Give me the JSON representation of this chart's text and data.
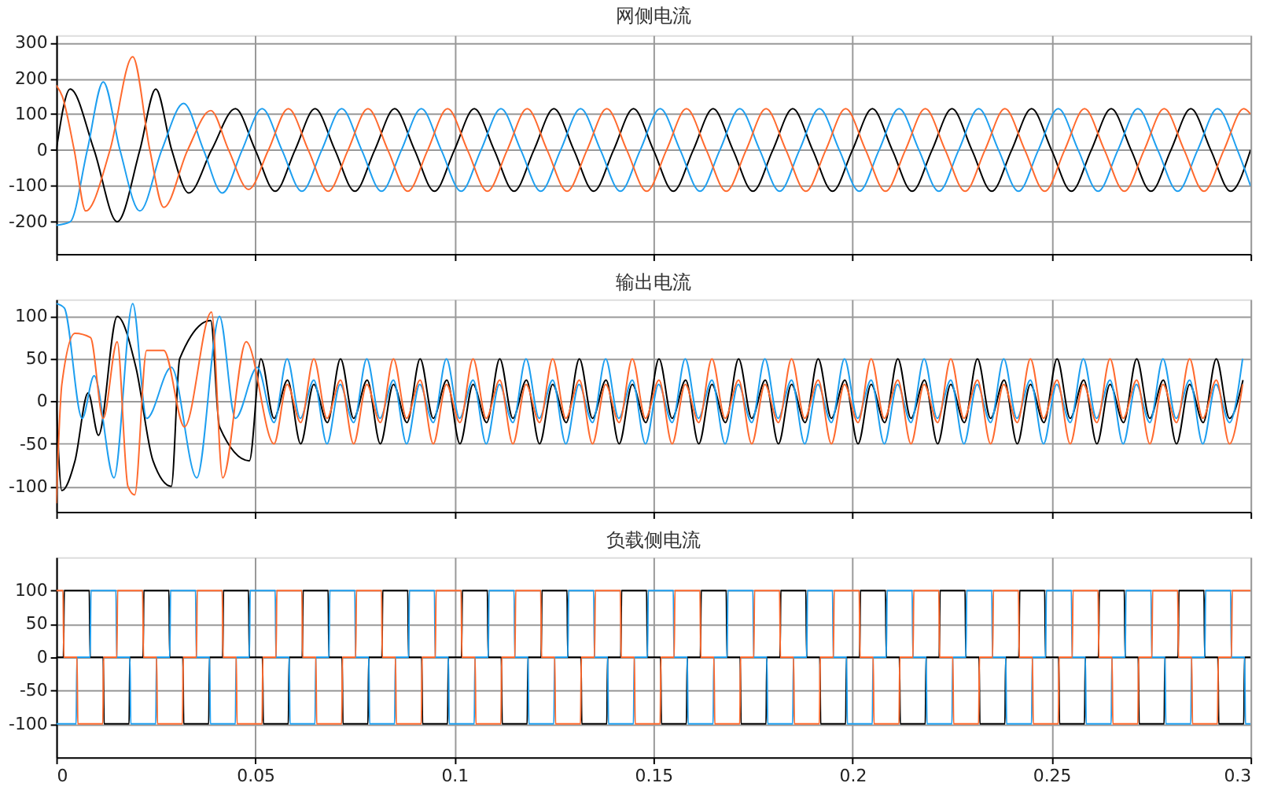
{
  "chart_data": [
    {
      "type": "line",
      "title": "网侧电流",
      "xlim": [
        0,
        0.3
      ],
      "xticks": [
        0,
        0.05,
        0.1,
        0.15,
        0.2,
        0.25,
        0.3
      ],
      "ylim": [
        -290,
        320
      ],
      "yticks": [
        -200,
        -100,
        0,
        100,
        200,
        300
      ],
      "grid": true,
      "tick_labels": "y",
      "series": [
        {
          "color": "#000000",
          "x": [
            0,
            0.0035,
            0.0095,
            0.0153,
            0.021,
            0.025,
            0.029,
            0.0333,
            0.039,
            0.045,
            0.05,
            0.055,
            0.06,
            0.065,
            0.07,
            0.075,
            0.08,
            0.085,
            0.09,
            0.095,
            0.1,
            0.105,
            0.11,
            0.115,
            0.12,
            0.125,
            0.13,
            0.135,
            0.14,
            0.145,
            0.15,
            0.155,
            0.16,
            0.165,
            0.17,
            0.175,
            0.18,
            0.185,
            0.19,
            0.195,
            0.2,
            0.205,
            0.21,
            0.215,
            0.22,
            0.225,
            0.23,
            0.235,
            0.24,
            0.245,
            0.25,
            0.255,
            0.26,
            0.265,
            0.27,
            0.275,
            0.28,
            0.285,
            0.29,
            0.295,
            0.3
          ],
          "values": [
            0,
            170,
            0,
            -200,
            0,
            170,
            0,
            -120,
            0,
            115,
            0,
            -115,
            0,
            115,
            0,
            -115,
            0,
            115,
            0,
            -115,
            0,
            115,
            0,
            -115,
            0,
            115,
            0,
            -115,
            0,
            115,
            0,
            -115,
            0,
            115,
            0,
            -115,
            0,
            115,
            0,
            -115,
            0,
            115,
            0,
            -115,
            0,
            115,
            0,
            -115,
            0,
            115,
            0,
            -115,
            0,
            115,
            0,
            -115,
            0,
            115,
            0,
            -115,
            0
          ]
        },
        {
          "color": "#1e9ff0",
          "x": [
            0,
            0.0035,
            0.0078,
            0.0118,
            0.016,
            0.021,
            0.0265,
            0.032,
            0.037,
            0.0417,
            0.0467,
            0.0517,
            0.0567,
            0.0617,
            0.0667,
            0.0717,
            0.0767,
            0.0817,
            0.0867,
            0.0917,
            0.0967,
            0.1017,
            0.1067,
            0.1117,
            0.1167,
            0.1217,
            0.1267,
            0.1317,
            0.1367,
            0.1417,
            0.1467,
            0.1517,
            0.1567,
            0.1617,
            0.1667,
            0.1717,
            0.1767,
            0.1817,
            0.1867,
            0.1917,
            0.1967,
            0.2017,
            0.2067,
            0.2117,
            0.2167,
            0.2217,
            0.2267,
            0.2317,
            0.2367,
            0.2417,
            0.2467,
            0.2517,
            0.2567,
            0.2617,
            0.2667,
            0.2717,
            0.2767,
            0.2817,
            0.2867,
            0.2917,
            0.2967,
            0.3
          ],
          "values": [
            -210,
            -200,
            0,
            190,
            0,
            -170,
            0,
            130,
            0,
            -120,
            0,
            115,
            0,
            -115,
            0,
            115,
            0,
            -115,
            0,
            115,
            0,
            -115,
            0,
            115,
            0,
            -115,
            0,
            115,
            0,
            -115,
            0,
            115,
            0,
            -115,
            0,
            115,
            0,
            -115,
            0,
            115,
            0,
            -115,
            0,
            115,
            0,
            -115,
            0,
            115,
            0,
            -115,
            0,
            115,
            0,
            -115,
            0,
            115,
            0,
            -115,
            0,
            115,
            0,
            -100
          ]
        },
        {
          "color": "#ff6a2e",
          "x": [
            0,
            0.0015,
            0.0045,
            0.0074,
            0.0135,
            0.0192,
            0.0235,
            0.027,
            0.033,
            0.0388,
            0.0433,
            0.0483,
            0.0533,
            0.0583,
            0.0633,
            0.0683,
            0.0733,
            0.0783,
            0.0833,
            0.0883,
            0.0933,
            0.0983,
            0.1033,
            0.1083,
            0.1133,
            0.1183,
            0.1233,
            0.1283,
            0.1333,
            0.1383,
            0.1433,
            0.1483,
            0.1533,
            0.1583,
            0.1633,
            0.1683,
            0.1733,
            0.1783,
            0.1833,
            0.1883,
            0.1933,
            0.1983,
            0.2033,
            0.2083,
            0.2133,
            0.2183,
            0.2233,
            0.2283,
            0.2333,
            0.2383,
            0.2433,
            0.2483,
            0.2533,
            0.2583,
            0.2633,
            0.2683,
            0.2733,
            0.2783,
            0.2833,
            0.2883,
            0.2933,
            0.2983,
            0.3
          ],
          "values": [
            180,
            150,
            0,
            -170,
            0,
            260,
            0,
            -160,
            0,
            110,
            0,
            -110,
            0,
            115,
            0,
            -115,
            0,
            115,
            0,
            -115,
            0,
            115,
            0,
            -115,
            0,
            115,
            0,
            -115,
            0,
            115,
            0,
            -115,
            0,
            115,
            0,
            -115,
            0,
            115,
            0,
            -115,
            0,
            115,
            0,
            -115,
            0,
            115,
            0,
            -115,
            0,
            115,
            0,
            -115,
            0,
            115,
            0,
            -115,
            0,
            115,
            0,
            -115,
            0,
            115,
            100
          ]
        }
      ]
    },
    {
      "type": "line",
      "title": "输出电流",
      "xlim": [
        0,
        0.3
      ],
      "xticks": [
        0,
        0.05,
        0.1,
        0.15,
        0.2,
        0.25,
        0.3
      ],
      "ylim": [
        -130,
        120
      ],
      "yticks": [
        -100,
        -50,
        0,
        50,
        100
      ],
      "grid": true,
      "tick_labels": "y",
      "series": [
        {
          "color": "#000000",
          "x": [
            0,
            0.0014,
            0.0047,
            0.008,
            0.0106,
            0.0153,
            0.02,
            0.0243,
            0.0289,
            0.031,
            0.0388,
            0.041,
            0.0485,
            0.0514,
            0.0547,
            0.0581,
            0.0614,
            0.0647,
            0.0681,
            0.0714,
            0.0747,
            0.0781,
            0.0814,
            0.0847,
            0.0881,
            0.0914,
            0.0947,
            0.0981,
            0.1014,
            0.1047,
            0.1081,
            0.1114,
            0.1147,
            0.1181,
            0.1214,
            0.1247,
            0.1281,
            0.1314,
            0.1347,
            0.1381,
            0.1414,
            0.1447,
            0.1481,
            0.1514,
            0.1547,
            0.1581,
            0.1614,
            0.1647,
            0.1681,
            0.1714,
            0.1747,
            0.1781,
            0.1814,
            0.1847,
            0.1881,
            0.1914,
            0.1947,
            0.1981,
            0.2014,
            0.2047,
            0.2081,
            0.2114,
            0.2147,
            0.2181,
            0.2214,
            0.2247,
            0.2281,
            0.2314,
            0.2347,
            0.2381,
            0.2414,
            0.2447,
            0.2481,
            0.2514,
            0.2547,
            0.2581,
            0.2614,
            0.2647,
            0.2681,
            0.2714,
            0.2747,
            0.2781,
            0.2814,
            0.2847,
            0.2881,
            0.2914,
            0.2947,
            0.2981
          ],
          "values": [
            0,
            -105,
            -70,
            10,
            -40,
            100,
            40,
            -70,
            -100,
            50,
            95,
            -30,
            -70,
            50,
            -20,
            25,
            -50,
            20,
            -25,
            50,
            -20,
            25,
            -50,
            20,
            -25,
            50,
            -20,
            25,
            -50,
            20,
            -25,
            50,
            -20,
            25,
            -50,
            20,
            -25,
            50,
            -20,
            25,
            -50,
            20,
            -25,
            50,
            -20,
            25,
            -50,
            20,
            -25,
            50,
            -20,
            25,
            -50,
            20,
            -25,
            50,
            -20,
            25,
            -50,
            20,
            -25,
            50,
            -20,
            25,
            -50,
            20,
            -25,
            50,
            -20,
            25,
            -50,
            20,
            -25,
            50,
            -20,
            25,
            -50,
            20,
            -25,
            50,
            -20,
            25,
            -50,
            20,
            -25,
            50,
            -20,
            25
          ]
        },
        {
          "color": "#1e9ff0",
          "x": [
            0,
            0.002,
            0.0065,
            0.0095,
            0.0145,
            0.0192,
            0.0227,
            0.0289,
            0.0353,
            0.041,
            0.045,
            0.0505,
            0.0547,
            0.058,
            0.0613,
            0.0647,
            0.068,
            0.0713,
            0.0747,
            0.078,
            0.0813,
            0.0847,
            0.088,
            0.0913,
            0.0947,
            0.098,
            0.1013,
            0.1047,
            0.108,
            0.1113,
            0.1147,
            0.118,
            0.1213,
            0.1247,
            0.128,
            0.1313,
            0.1347,
            0.138,
            0.1413,
            0.1447,
            0.148,
            0.1513,
            0.1547,
            0.158,
            0.1613,
            0.1647,
            0.168,
            0.1713,
            0.1747,
            0.178,
            0.1813,
            0.1847,
            0.188,
            0.1913,
            0.1947,
            0.198,
            0.2013,
            0.2047,
            0.208,
            0.2113,
            0.2147,
            0.218,
            0.2213,
            0.2247,
            0.228,
            0.2313,
            0.2347,
            0.238,
            0.2413,
            0.2447,
            0.248,
            0.2513,
            0.2547,
            0.258,
            0.2613,
            0.2647,
            0.268,
            0.2713,
            0.2747,
            0.278,
            0.2813,
            0.2847,
            0.288,
            0.2913,
            0.2947,
            0.298
          ],
          "values": [
            115,
            110,
            -20,
            30,
            -90,
            115,
            -20,
            40,
            -90,
            100,
            -20,
            40,
            -25,
            50,
            -20,
            25,
            -50,
            20,
            -25,
            50,
            -20,
            25,
            -50,
            20,
            -25,
            50,
            -20,
            25,
            -50,
            20,
            -25,
            50,
            -20,
            25,
            -50,
            20,
            -25,
            50,
            -20,
            25,
            -50,
            20,
            -25,
            50,
            -20,
            25,
            -50,
            20,
            -25,
            50,
            -20,
            25,
            -50,
            20,
            -25,
            50,
            -20,
            25,
            -50,
            20,
            -25,
            50,
            -20,
            25,
            -50,
            20,
            -25,
            50,
            -20,
            25,
            -50,
            20,
            -25,
            50,
            -20,
            25,
            -50,
            20,
            -25,
            50,
            -20,
            25,
            -50,
            20,
            -25,
            50
          ]
        },
        {
          "color": "#ff6a2e",
          "x": [
            0,
            0.0014,
            0.0047,
            0.0086,
            0.0118,
            0.0153,
            0.018,
            0.0197,
            0.0227,
            0.027,
            0.0322,
            0.039,
            0.0418,
            0.0477,
            0.0547,
            0.058,
            0.0614,
            0.0647,
            0.068,
            0.0714,
            0.0747,
            0.078,
            0.0814,
            0.0847,
            0.088,
            0.0914,
            0.0947,
            0.098,
            0.1014,
            0.1047,
            0.108,
            0.1114,
            0.1147,
            0.118,
            0.1214,
            0.1247,
            0.128,
            0.1314,
            0.1347,
            0.138,
            0.1414,
            0.1447,
            0.148,
            0.1514,
            0.1547,
            0.158,
            0.1614,
            0.1647,
            0.168,
            0.1714,
            0.1747,
            0.178,
            0.1814,
            0.1847,
            0.188,
            0.1914,
            0.1947,
            0.198,
            0.2014,
            0.2047,
            0.208,
            0.2114,
            0.2147,
            0.218,
            0.2214,
            0.2247,
            0.228,
            0.2314,
            0.2347,
            0.238,
            0.2414,
            0.2447,
            0.248,
            0.2514,
            0.2547,
            0.258,
            0.2614,
            0.2647,
            0.268,
            0.2714,
            0.2747,
            0.278,
            0.2814,
            0.2847,
            0.288,
            0.2914,
            0.2947,
            0.298
          ],
          "values": [
            -120,
            20,
            80,
            75,
            -20,
            70,
            -100,
            -110,
            60,
            60,
            -30,
            105,
            -90,
            70,
            -50,
            20,
            -25,
            50,
            -20,
            25,
            -50,
            20,
            -25,
            50,
            -20,
            25,
            -50,
            20,
            -25,
            50,
            -20,
            25,
            -50,
            20,
            -25,
            50,
            -20,
            25,
            -50,
            20,
            -25,
            50,
            -20,
            25,
            -50,
            20,
            -25,
            50,
            -20,
            25,
            -50,
            20,
            -25,
            50,
            -20,
            25,
            -50,
            20,
            -25,
            50,
            -20,
            25,
            -50,
            20,
            -25,
            50,
            -20,
            25,
            -50,
            20,
            -25,
            50,
            -20,
            25,
            -50,
            20,
            -25,
            50,
            -20,
            25,
            -50,
            20,
            -25,
            50,
            -20,
            25,
            -50,
            20
          ]
        }
      ]
    },
    {
      "type": "line",
      "title": "负载侧电流",
      "xlim": [
        0,
        0.3
      ],
      "xticks": [
        0,
        0.05,
        0.1,
        0.15,
        0.2,
        0.25,
        0.3
      ],
      "ylim": [
        -150,
        150
      ],
      "yticks": [
        -100,
        -50,
        0,
        50,
        100
      ],
      "grid": true,
      "series": [
        {
          "color": "#000000",
          "x": [
            0,
            0.0018,
            0.002,
            0.0083,
            0.0085,
            0.0118,
            0.012,
            0.0183,
            0.0185,
            0.0218,
            0.022,
            0.0283,
            0.0285,
            0.0318,
            0.032,
            0.0383,
            0.0385,
            0.0418,
            0.042,
            0.0483,
            0.0485,
            0.0518,
            0.052,
            0.0583,
            0.0585,
            0.0618,
            0.062,
            0.0683,
            0.0685,
            0.0718,
            0.072,
            0.0783,
            0.0785,
            0.0818,
            0.082,
            0.0883,
            0.0885,
            0.0918,
            0.092,
            0.0983,
            0.0985,
            0.1018,
            0.102,
            0.1083,
            0.1085,
            0.1118,
            0.112,
            0.1183,
            0.1185,
            0.1218,
            0.122,
            0.1283,
            0.1285,
            0.1318,
            0.132,
            0.1383,
            0.1385,
            0.1418,
            0.142,
            0.1483,
            0.1485,
            0.1518,
            0.152,
            0.1583,
            0.1585,
            0.1618,
            0.162,
            0.1683,
            0.1685,
            0.1718,
            0.172,
            0.1783,
            0.1785,
            0.1818,
            0.182,
            0.1883,
            0.1885,
            0.1918,
            0.192,
            0.1983,
            0.1985,
            0.2018,
            0.202,
            0.2083,
            0.2085,
            0.2118,
            0.212,
            0.2183,
            0.2185,
            0.2218,
            0.222,
            0.2283,
            0.2285,
            0.2318,
            0.232,
            0.2383,
            0.2385,
            0.2418,
            0.242,
            0.2483,
            0.2485,
            0.2518,
            0.252,
            0.2583,
            0.2585,
            0.2618,
            0.262,
            0.2683,
            0.2685,
            0.2718,
            0.272,
            0.2783,
            0.2785,
            0.2818,
            0.282,
            0.2883,
            0.2885,
            0.2918,
            0.292,
            0.2983,
            0.2985,
            0.3
          ],
          "values": [
            0,
            0,
            100,
            100,
            0,
            0,
            -100,
            -100,
            0,
            0,
            100,
            100,
            0,
            0,
            -100,
            -100,
            0,
            0,
            100,
            100,
            0,
            0,
            -100,
            -100,
            0,
            0,
            100,
            100,
            0,
            0,
            -100,
            -100,
            0,
            0,
            100,
            100,
            0,
            0,
            -100,
            -100,
            0,
            0,
            100,
            100,
            0,
            0,
            -100,
            -100,
            0,
            0,
            100,
            100,
            0,
            0,
            -100,
            -100,
            0,
            0,
            100,
            100,
            0,
            0,
            -100,
            -100,
            0,
            0,
            100,
            100,
            0,
            0,
            -100,
            -100,
            0,
            0,
            100,
            100,
            0,
            0,
            -100,
            -100,
            0,
            0,
            100,
            100,
            0,
            0,
            -100,
            -100,
            0,
            0,
            100,
            100,
            0,
            0,
            -100,
            -100,
            0,
            0,
            100,
            100,
            0,
            0,
            -100,
            -100,
            0,
            0,
            100,
            100,
            0,
            0,
            -100,
            -100,
            0,
            0,
            100,
            100,
            0,
            0,
            -100,
            -100,
            0,
            0
          ]
        },
        {
          "color": "#1e9ff0",
          "x": [
            0,
            0.005,
            0.0052,
            0.0085,
            0.0087,
            0.015,
            0.0152,
            0.0185,
            0.0187,
            0.025,
            0.0252,
            0.0285,
            0.0287,
            0.035,
            0.0352,
            0.0385,
            0.0387,
            0.045,
            0.0452,
            0.0485,
            0.0487,
            0.055,
            0.0552,
            0.0585,
            0.0587,
            0.065,
            0.0652,
            0.0685,
            0.0687,
            0.075,
            0.0752,
            0.0785,
            0.0787,
            0.085,
            0.0852,
            0.0885,
            0.0887,
            0.095,
            0.0952,
            0.0985,
            0.0987,
            0.105,
            0.1052,
            0.1085,
            0.1087,
            0.115,
            0.1152,
            0.1185,
            0.1187,
            0.125,
            0.1252,
            0.1285,
            0.1287,
            0.135,
            0.1352,
            0.1385,
            0.1387,
            0.145,
            0.1452,
            0.1485,
            0.1487,
            0.155,
            0.1552,
            0.1585,
            0.1587,
            0.165,
            0.1652,
            0.1685,
            0.1687,
            0.175,
            0.1752,
            0.1785,
            0.1787,
            0.185,
            0.1852,
            0.1885,
            0.1887,
            0.195,
            0.1952,
            0.1985,
            0.1987,
            0.205,
            0.2052,
            0.2085,
            0.2087,
            0.215,
            0.2152,
            0.2185,
            0.2187,
            0.225,
            0.2252,
            0.2285,
            0.2287,
            0.235,
            0.2352,
            0.2385,
            0.2387,
            0.245,
            0.2452,
            0.2485,
            0.2487,
            0.255,
            0.2552,
            0.2585,
            0.2587,
            0.265,
            0.2652,
            0.2685,
            0.2687,
            0.275,
            0.2752,
            0.2785,
            0.2787,
            0.285,
            0.2852,
            0.2885,
            0.2887,
            0.295,
            0.2952,
            0.2985,
            0.2987,
            0.3
          ],
          "values": [
            -100,
            -100,
            0,
            0,
            100,
            100,
            0,
            0,
            -100,
            -100,
            0,
            0,
            100,
            100,
            0,
            0,
            -100,
            -100,
            0,
            0,
            100,
            100,
            0,
            0,
            -100,
            -100,
            0,
            0,
            100,
            100,
            0,
            0,
            -100,
            -100,
            0,
            0,
            100,
            100,
            0,
            0,
            -100,
            -100,
            0,
            0,
            100,
            100,
            0,
            0,
            -100,
            -100,
            0,
            0,
            100,
            100,
            0,
            0,
            -100,
            -100,
            0,
            0,
            100,
            100,
            0,
            0,
            -100,
            -100,
            0,
            0,
            100,
            100,
            0,
            0,
            -100,
            -100,
            0,
            0,
            100,
            100,
            0,
            0,
            -100,
            -100,
            0,
            0,
            100,
            100,
            0,
            0,
            -100,
            -100,
            0,
            0,
            100,
            100,
            0,
            0,
            -100,
            -100,
            0,
            0,
            100,
            100,
            0,
            0,
            -100,
            -100,
            0,
            0,
            100,
            100,
            0,
            0,
            -100,
            -100,
            0,
            0,
            100,
            100,
            0,
            0,
            -100,
            -100
          ]
        },
        {
          "color": "#ff6a2e",
          "x": [
            0,
            0.0017,
            0.0019,
            0.0052,
            0.0054,
            0.0117,
            0.0119,
            0.0152,
            0.0154,
            0.0217,
            0.0219,
            0.0252,
            0.0254,
            0.0317,
            0.0319,
            0.0352,
            0.0354,
            0.0417,
            0.0419,
            0.0452,
            0.0454,
            0.0517,
            0.0519,
            0.0552,
            0.0554,
            0.0617,
            0.0619,
            0.0652,
            0.0654,
            0.0717,
            0.0719,
            0.0752,
            0.0754,
            0.0817,
            0.0819,
            0.0852,
            0.0854,
            0.0917,
            0.0919,
            0.0952,
            0.0954,
            0.1017,
            0.1019,
            0.1052,
            0.1054,
            0.1117,
            0.1119,
            0.1152,
            0.1154,
            0.1217,
            0.1219,
            0.1252,
            0.1254,
            0.1317,
            0.1319,
            0.1352,
            0.1354,
            0.1417,
            0.1419,
            0.1452,
            0.1454,
            0.1517,
            0.1519,
            0.1552,
            0.1554,
            0.1617,
            0.1619,
            0.1652,
            0.1654,
            0.1717,
            0.1719,
            0.1752,
            0.1754,
            0.1817,
            0.1819,
            0.1852,
            0.1854,
            0.1917,
            0.1919,
            0.1952,
            0.1954,
            0.2017,
            0.2019,
            0.2052,
            0.2054,
            0.2117,
            0.2119,
            0.2152,
            0.2154,
            0.2217,
            0.2219,
            0.2252,
            0.2254,
            0.2317,
            0.2319,
            0.2352,
            0.2354,
            0.2417,
            0.2419,
            0.2452,
            0.2454,
            0.2517,
            0.2519,
            0.2552,
            0.2554,
            0.2617,
            0.2619,
            0.2652,
            0.2654,
            0.2717,
            0.2719,
            0.2752,
            0.2754,
            0.2817,
            0.2819,
            0.2852,
            0.2854,
            0.2917,
            0.2919,
            0.2952,
            0.2954,
            0.3
          ],
          "values": [
            100,
            100,
            0,
            0,
            -100,
            -100,
            0,
            0,
            100,
            100,
            0,
            0,
            -100,
            -100,
            0,
            0,
            100,
            100,
            0,
            0,
            -100,
            -100,
            0,
            0,
            100,
            100,
            0,
            0,
            -100,
            -100,
            0,
            0,
            100,
            100,
            0,
            0,
            -100,
            -100,
            0,
            0,
            100,
            100,
            0,
            0,
            -100,
            -100,
            0,
            0,
            100,
            100,
            0,
            0,
            -100,
            -100,
            0,
            0,
            100,
            100,
            0,
            0,
            -100,
            -100,
            0,
            0,
            100,
            100,
            0,
            0,
            -100,
            -100,
            0,
            0,
            100,
            100,
            0,
            0,
            -100,
            -100,
            0,
            0,
            100,
            100,
            0,
            0,
            -100,
            -100,
            0,
            0,
            100,
            100,
            0,
            0,
            -100,
            -100,
            0,
            0,
            100,
            100,
            0,
            0,
            -100,
            -100,
            0,
            0,
            100,
            100,
            0,
            0,
            -100,
            -100,
            0,
            0,
            100,
            100,
            0,
            0,
            -100,
            -100,
            0,
            0,
            100,
            100
          ]
        }
      ]
    }
  ]
}
